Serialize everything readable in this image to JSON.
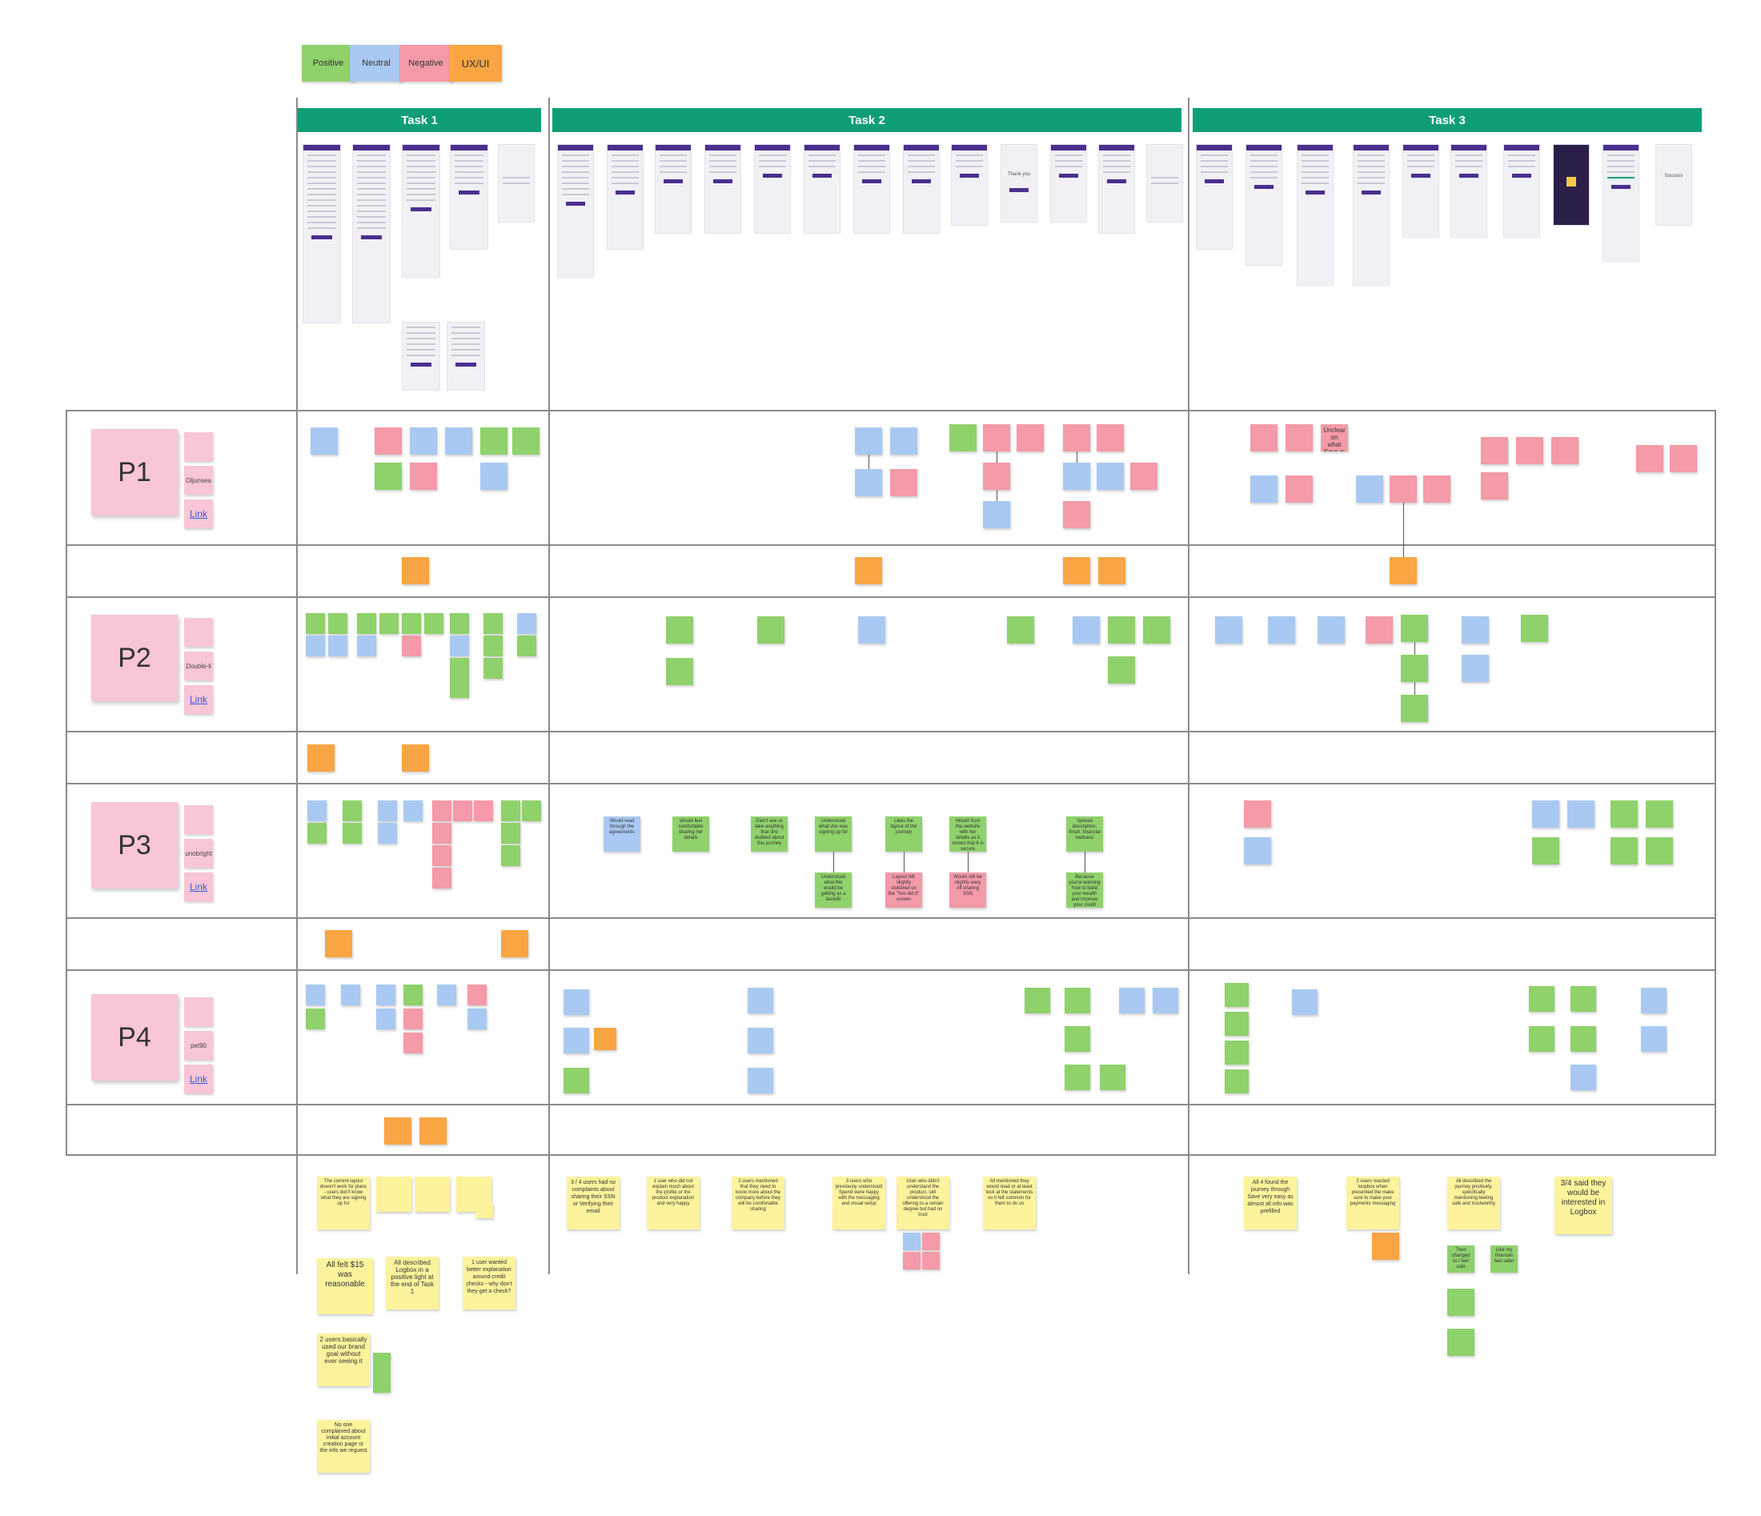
{
  "legend": [
    {
      "label": "Positive",
      "color": "#8fd16b"
    },
    {
      "label": "Neutral",
      "color": "#a9c9f2"
    },
    {
      "label": "Negative",
      "color": "#f49aa8"
    },
    {
      "label": "UX/UI",
      "color": "#f9a544"
    }
  ],
  "tasks": [
    {
      "label": "Task 1"
    },
    {
      "label": "Task 2"
    },
    {
      "label": "Task 3"
    }
  ],
  "participants": [
    {
      "label": "P1",
      "username": "Oljunsea",
      "link": "Link"
    },
    {
      "label": "P2",
      "username": "Double-li",
      "link": "Link"
    },
    {
      "label": "P3",
      "username": "unobright",
      "link": "Link"
    },
    {
      "label": "P4",
      "username": "pet90",
      "link": "Link"
    }
  ],
  "screens": {
    "task2_center_text": "Thank you",
    "task3_center_text": "Success"
  },
  "p2_notes": {
    "unclear": "Unclear on what Save is"
  },
  "p3_notes": {
    "would_read": "Would read through the agreements",
    "felt_comfortable": "Would feel comfortable sharing her details",
    "didnt_see": "Didn't see or take anything that she disliked about this journey",
    "understood_signing": "Understood what she was signing up for",
    "likes_layout": "Likes the layout of the journey",
    "website_trust": "Would trust the website with her details as it shows that it is secure",
    "special_description": "Special description, finish, financial wellness",
    "understood_benefit": "Understood what the would be getting as a benefit",
    "layout_cluttered": "Layout felt slightly cluttered on the \"You did it\" screen",
    "wary_ssn": "Would still be slightly wary off sharing SSN",
    "because_learning": "Because you're learning how to build your wealth and improve your credit"
  },
  "summaries": {
    "task1_layout": "The current layout doesn't work for plans - users don't know what they are signing up for",
    "task1_price": "All felt $15 was reasonable",
    "task1_positive": "All described Logbox in a positive light at the end of Task 1",
    "task1_explanation": "1 user wanted better explanation around credit checks - why don't they get a check?",
    "task1_brand_goal": "2 users basically used our brand goal without ever seeing it",
    "task1_no_complaints": "No one complained about initial account creation page or the info we request",
    "task2_ssn": "3 / 4 users had no complaints about sharing their SSN or Verifying their email",
    "task2_storytelling": "1 user who did not explain much about the profile or the product explanation and very happy",
    "task2_company": "2 users mentioned that they need to know more about the company before they will be comfortable sharing",
    "task2_previously": "3 users who previously understood Spend were happy with the messaging and visual setup",
    "task2_didnt_understand": "User who didn't understand the product, still understood the offering to a certain degree but had no trust",
    "task2_mentioned": "All mentioned they would read or at least look at the statements so it felt common for them to do so",
    "task3_journey": "All 4 found the journey through Save very easy as almost all info was prefilled",
    "task3_loopbox": "2 users reacted loopbox when presented the make sure to make your payments messaging",
    "task3_describe": "All described the journey positively, specifically mentioning feeling safe and trustworthy",
    "task3_interested": "3/4 said they would be interested in Logbox",
    "task3_sub_changed": "Then changed to I feel safe",
    "task3_sub_finances": "Like my finances feel safer"
  }
}
